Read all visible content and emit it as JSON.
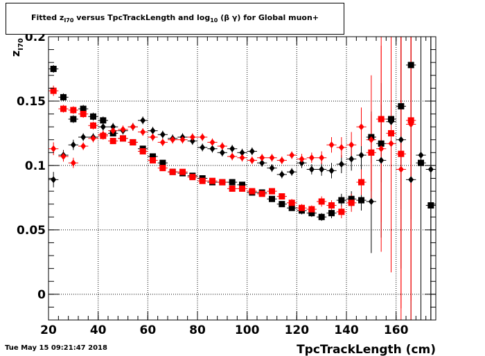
{
  "title": {
    "prefix": "Fitted ",
    "z_sym": "z",
    "z_sub": "I70",
    "middle": " versus TpcTrackLength and log",
    "log_sub": "10",
    "suffix": " (β γ) for Global muon+"
  },
  "timestamp": "Tue May 15 09:21:47 2018",
  "colors": {
    "series_a": "#000000",
    "series_b": "#ff0000",
    "grid": "#000000"
  },
  "chart_data": {
    "type": "scatter",
    "title": "Fitted z_I70 versus TpcTrackLength and log10 (β γ) for Global muon+",
    "xlabel": "TpcTrackLength (cm)",
    "ylabel": "z_I70",
    "ylabel_main": "z",
    "ylabel_sub": "I70",
    "xlim": [
      20,
      176
    ],
    "ylim": [
      -0.02,
      0.2
    ],
    "xticks": [
      20,
      40,
      60,
      80,
      100,
      120,
      140,
      160
    ],
    "xtick_labels": [
      "20",
      "40",
      "60",
      "80",
      "100",
      "120",
      "140",
      "160"
    ],
    "yticks": [
      0,
      0.05,
      0.1,
      0.15,
      0.2
    ],
    "ytick_labels": [
      "0",
      "0.05",
      "0.1",
      "0.15",
      "0.2"
    ],
    "grid": true,
    "x_bin_halfwidth": 2,
    "series": [
      {
        "color": "#000000",
        "marker": "square",
        "x": [
          22,
          26,
          30,
          34,
          38,
          42,
          46,
          50,
          54,
          58,
          62,
          66,
          70,
          74,
          78,
          82,
          86,
          90,
          94,
          98,
          102,
          106,
          110,
          114,
          118,
          122,
          126,
          130,
          134,
          138,
          142,
          146,
          150,
          154,
          158,
          162,
          166,
          170,
          174
        ],
        "y": [
          0.175,
          0.153,
          0.136,
          0.144,
          0.138,
          0.135,
          0.125,
          0.121,
          0.118,
          0.113,
          0.107,
          0.102,
          0.095,
          0.094,
          0.092,
          0.09,
          0.087,
          0.087,
          0.087,
          0.085,
          0.079,
          0.079,
          0.074,
          0.07,
          0.067,
          0.065,
          0.063,
          0.06,
          0.063,
          0.073,
          0.074,
          0.073,
          0.122,
          0.117,
          0.136,
          0.146,
          0.178,
          0.102,
          0.069
        ],
        "err": [
          0.003,
          0.003,
          0.003,
          0.003,
          0.003,
          0.003,
          0.002,
          0.002,
          0.002,
          0.002,
          0.002,
          0.002,
          0.002,
          0.002,
          0.002,
          0.002,
          0.002,
          0.002,
          0.002,
          0.002,
          0.002,
          0.002,
          0.002,
          0.002,
          0.002,
          0.003,
          0.003,
          0.003,
          0.004,
          0.005,
          0.006,
          0.008,
          0.02,
          0.03,
          0.06,
          0.08,
          0.12,
          0.15,
          0.2
        ]
      },
      {
        "color": "#000000",
        "marker": "diamond",
        "x": [
          22,
          26,
          30,
          34,
          38,
          42,
          46,
          50,
          54,
          58,
          62,
          66,
          70,
          74,
          78,
          82,
          86,
          90,
          94,
          98,
          102,
          106,
          110,
          114,
          118,
          122,
          126,
          130,
          134,
          138,
          142,
          146,
          150,
          154,
          158,
          162,
          166,
          170,
          174
        ],
        "y": [
          0.089,
          0.108,
          0.116,
          0.122,
          0.122,
          0.13,
          0.13,
          0.127,
          0.13,
          0.135,
          0.127,
          0.124,
          0.121,
          0.122,
          0.119,
          0.114,
          0.113,
          0.11,
          0.113,
          0.11,
          0.111,
          0.102,
          0.098,
          0.093,
          0.095,
          0.102,
          0.097,
          0.097,
          0.096,
          0.101,
          0.105,
          0.108,
          0.072,
          0.104,
          0.134,
          0.12,
          0.089,
          0.108,
          0.097
        ],
        "err": [
          0.006,
          0.004,
          0.004,
          0.003,
          0.003,
          0.003,
          0.003,
          0.003,
          0.003,
          0.003,
          0.003,
          0.003,
          0.003,
          0.003,
          0.003,
          0.003,
          0.003,
          0.003,
          0.003,
          0.003,
          0.003,
          0.003,
          0.003,
          0.003,
          0.003,
          0.004,
          0.004,
          0.005,
          0.006,
          0.007,
          0.009,
          0.012,
          0.04,
          0.06,
          0.08,
          0.1,
          0.12,
          0.13,
          0.14
        ]
      },
      {
        "color": "#ff0000",
        "marker": "square",
        "x": [
          22,
          26,
          30,
          34,
          38,
          42,
          46,
          50,
          54,
          58,
          62,
          66,
          70,
          74,
          78,
          82,
          86,
          90,
          94,
          98,
          102,
          106,
          110,
          114,
          118,
          122,
          126,
          130,
          134,
          138,
          142,
          146,
          150,
          154,
          158,
          162,
          166
        ],
        "y": [
          0.158,
          0.144,
          0.143,
          0.14,
          0.131,
          0.123,
          0.119,
          0.121,
          0.118,
          0.111,
          0.104,
          0.098,
          0.095,
          0.095,
          0.091,
          0.088,
          0.088,
          0.087,
          0.082,
          0.082,
          0.08,
          0.078,
          0.08,
          0.076,
          0.071,
          0.067,
          0.066,
          0.072,
          0.069,
          0.064,
          0.071,
          0.087,
          0.11,
          0.136,
          0.125,
          0.109,
          0.135
        ],
        "err": [
          0.004,
          0.003,
          0.003,
          0.003,
          0.003,
          0.003,
          0.002,
          0.002,
          0.002,
          0.002,
          0.002,
          0.002,
          0.002,
          0.002,
          0.002,
          0.002,
          0.002,
          0.002,
          0.002,
          0.002,
          0.002,
          0.002,
          0.002,
          0.002,
          0.003,
          0.003,
          0.003,
          0.004,
          0.004,
          0.005,
          0.007,
          0.01,
          0.03,
          0.08,
          0.1,
          0.12,
          0.14
        ]
      },
      {
        "color": "#ff0000",
        "marker": "diamond",
        "x": [
          22,
          26,
          30,
          34,
          38,
          42,
          46,
          50,
          54,
          58,
          62,
          66,
          70,
          74,
          78,
          82,
          86,
          90,
          94,
          98,
          102,
          106,
          110,
          114,
          118,
          122,
          126,
          130,
          134,
          138,
          142,
          146,
          150,
          154,
          158,
          162,
          166
        ],
        "y": [
          0.113,
          0.107,
          0.102,
          0.115,
          0.121,
          0.124,
          0.127,
          0.128,
          0.13,
          0.126,
          0.122,
          0.118,
          0.12,
          0.12,
          0.122,
          0.122,
          0.118,
          0.115,
          0.107,
          0.106,
          0.104,
          0.106,
          0.106,
          0.104,
          0.108,
          0.105,
          0.106,
          0.106,
          0.116,
          0.114,
          0.116,
          0.13,
          0.12,
          0.113,
          0.117,
          0.097,
          0.132
        ],
        "err": [
          0.005,
          0.004,
          0.004,
          0.003,
          0.003,
          0.003,
          0.003,
          0.003,
          0.003,
          0.003,
          0.003,
          0.003,
          0.003,
          0.003,
          0.003,
          0.003,
          0.003,
          0.003,
          0.003,
          0.003,
          0.003,
          0.003,
          0.003,
          0.003,
          0.003,
          0.004,
          0.004,
          0.005,
          0.006,
          0.008,
          0.01,
          0.015,
          0.05,
          0.08,
          0.1,
          0.12,
          0.16
        ]
      }
    ]
  }
}
